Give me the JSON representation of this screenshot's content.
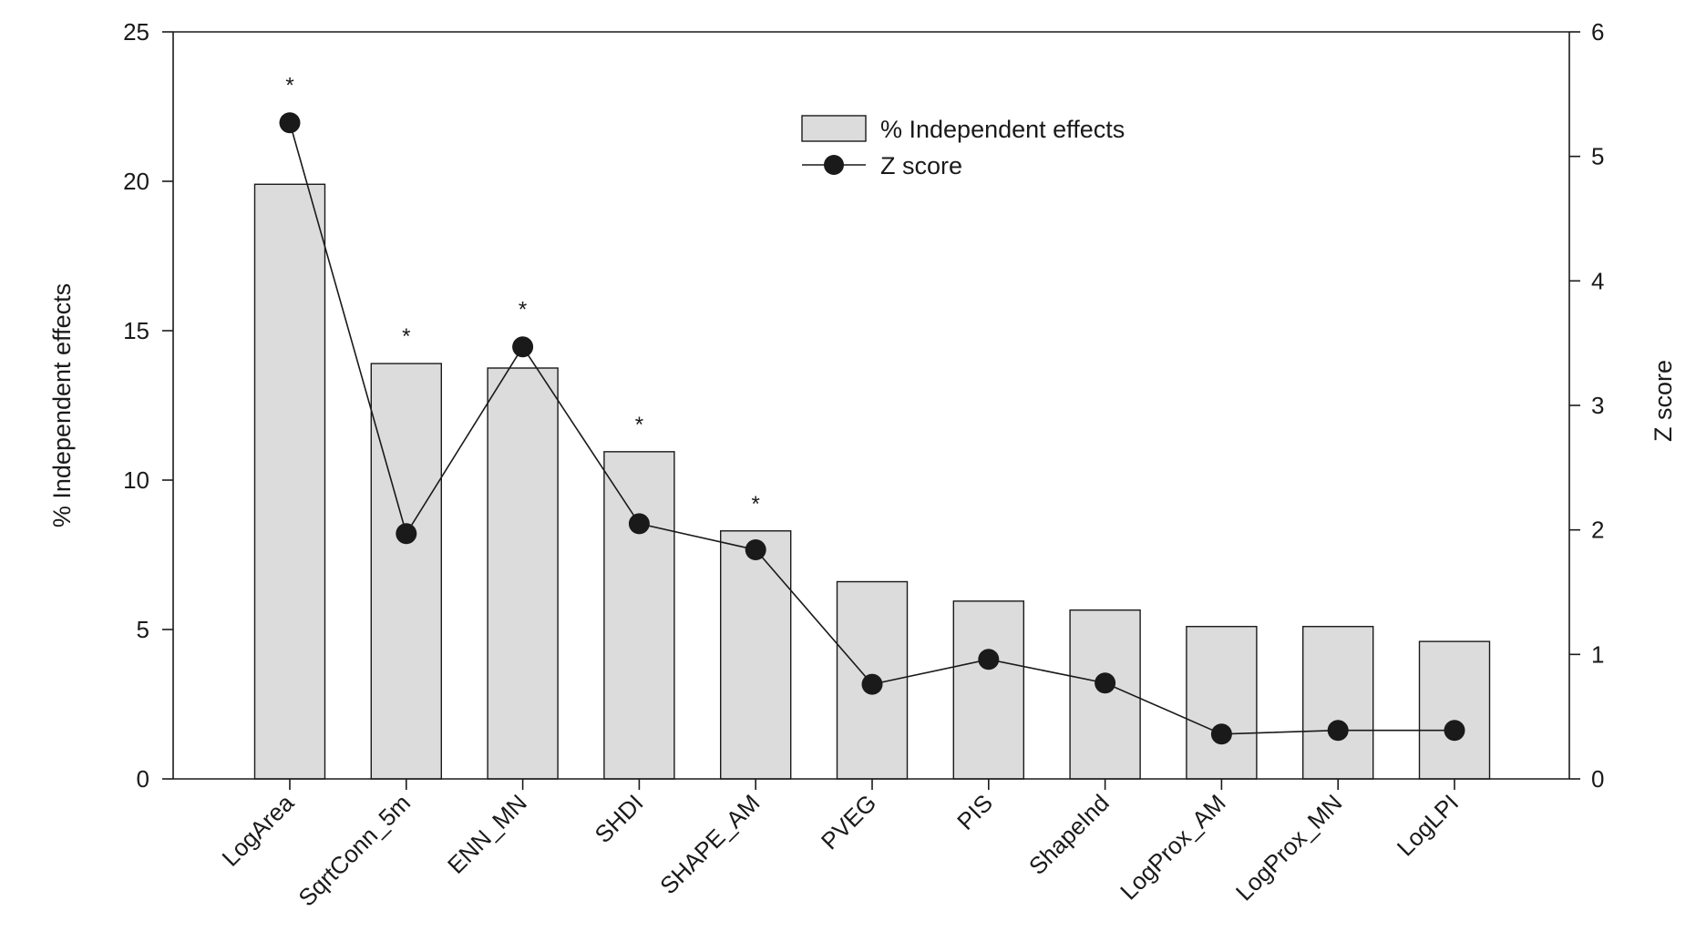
{
  "chart_data": {
    "type": "bar",
    "categories": [
      "LogArea",
      "SqrtConn_5m",
      "ENN_MN",
      "SHDI",
      "SHAPE_AM",
      "PVEG",
      "PIS",
      "ShapeInd",
      "LogProx_AM",
      "LogProx_MN",
      "LogLPI"
    ],
    "series": [
      {
        "name": "% Independent effects",
        "type": "bar",
        "axis": "left",
        "values": [
          19.9,
          13.9,
          13.75,
          10.95,
          8.3,
          6.6,
          5.95,
          5.65,
          5.1,
          5.1,
          4.6
        ],
        "color": "#dcdcdc"
      },
      {
        "name": "Z score",
        "type": "line",
        "axis": "right",
        "values": [
          5.27,
          1.97,
          3.47,
          2.05,
          1.84,
          0.76,
          0.96,
          0.77,
          0.36,
          0.39,
          0.39
        ],
        "color": "#1a1a1a"
      }
    ],
    "significance": [
      "*",
      "*",
      "*",
      "*",
      "*",
      "",
      "",
      "",
      "",
      "",
      ""
    ],
    "ylabel": "% Independent effects",
    "y2label": "Z score",
    "ylim": [
      0,
      25
    ],
    "y2lim": [
      0,
      6
    ],
    "yticks": [
      0,
      5,
      10,
      15,
      20,
      25
    ],
    "y2ticks": [
      0,
      1,
      2,
      3,
      4,
      5,
      6
    ],
    "legend_position": "top-center",
    "grid": false
  }
}
